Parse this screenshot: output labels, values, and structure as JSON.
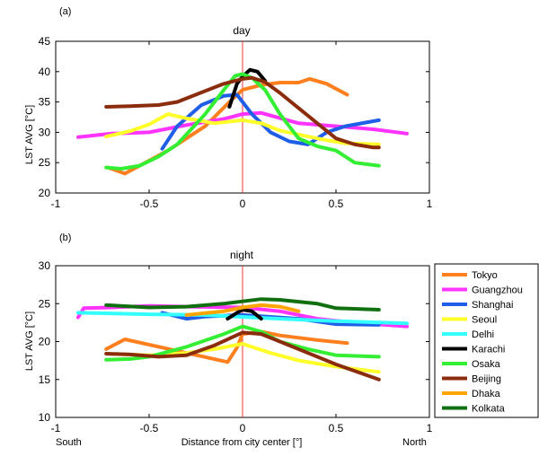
{
  "figure": {
    "dir_south": "South",
    "dir_north": "North",
    "xlabel": "Distance from city center [°]"
  },
  "legend": {
    "placement": "right",
    "items": [
      {
        "name": "Tokyo",
        "color": "#ff7f1e"
      },
      {
        "name": "Guangzhou",
        "color": "#ff33ff"
      },
      {
        "name": "Shanghai",
        "color": "#1f5fe8"
      },
      {
        "name": "Seoul",
        "color": "#ffff2a"
      },
      {
        "name": "Delhi",
        "color": "#33ffff"
      },
      {
        "name": "Karachi",
        "color": "#000000"
      },
      {
        "name": "Osaka",
        "color": "#33ee33"
      },
      {
        "name": "Beijing",
        "color": "#8b2d0d"
      },
      {
        "name": "Dhaka",
        "color": "#ffa500"
      },
      {
        "name": "Kolkata",
        "color": "#107010"
      }
    ]
  },
  "chart_data": [
    {
      "type": "line",
      "panel_label": "(a)",
      "title": "day",
      "ylabel": "LST AVG [°C]",
      "xlabel": "",
      "xlim": [
        -1,
        1
      ],
      "ylim": [
        20,
        45
      ],
      "xticks": [
        "-1",
        "-0.5",
        "0",
        "0.5",
        "1"
      ],
      "yticks": [
        "20",
        "25",
        "30",
        "35",
        "40",
        "45"
      ],
      "vline_x": 0,
      "series": [
        {
          "name": "Tokyo",
          "points": [
            [
              -0.72,
              24.2
            ],
            [
              -0.63,
              23.2
            ],
            [
              -0.4,
              27
            ],
            [
              -0.2,
              31
            ],
            [
              -0.05,
              35.6
            ],
            [
              0,
              37
            ],
            [
              0.1,
              37.8
            ],
            [
              0.2,
              38.2
            ],
            [
              0.3,
              38.2
            ],
            [
              0.36,
              38.8
            ],
            [
              0.45,
              38
            ],
            [
              0.56,
              36.2
            ]
          ]
        },
        {
          "name": "Guangzhou",
          "points": [
            [
              -0.88,
              29.2
            ],
            [
              -0.7,
              29.8
            ],
            [
              -0.5,
              30
            ],
            [
              -0.3,
              31.2
            ],
            [
              -0.1,
              32.2
            ],
            [
              0,
              33
            ],
            [
              0.1,
              33.2
            ],
            [
              0.3,
              31.5
            ],
            [
              0.5,
              31
            ],
            [
              0.7,
              30.5
            ],
            [
              0.88,
              29.8
            ]
          ]
        },
        {
          "name": "Shanghai",
          "points": [
            [
              -0.43,
              27.3
            ],
            [
              -0.35,
              31
            ],
            [
              -0.22,
              34.5
            ],
            [
              -0.1,
              36
            ],
            [
              -0.03,
              36.2
            ],
            [
              0.05,
              33
            ],
            [
              0.15,
              30
            ],
            [
              0.25,
              28.5
            ],
            [
              0.35,
              28
            ],
            [
              0.45,
              30
            ],
            [
              0.55,
              31
            ],
            [
              0.73,
              32
            ]
          ]
        },
        {
          "name": "Seoul",
          "points": [
            [
              -0.73,
              29.3
            ],
            [
              -0.6,
              30.2
            ],
            [
              -0.5,
              31.3
            ],
            [
              -0.4,
              33
            ],
            [
              -0.3,
              32.3
            ],
            [
              -0.15,
              31.5
            ],
            [
              0,
              32
            ],
            [
              0.1,
              31.5
            ],
            [
              0.2,
              30.3
            ],
            [
              0.35,
              29.3
            ],
            [
              0.45,
              28.7
            ],
            [
              0.55,
              28.2
            ],
            [
              0.73,
              28
            ]
          ]
        },
        {
          "name": "Karachi",
          "points": [
            [
              -0.07,
              34.2
            ],
            [
              -0.03,
              38
            ],
            [
              0,
              39.2
            ],
            [
              0.04,
              40.3
            ],
            [
              0.08,
              40
            ],
            [
              0.12,
              38.5
            ]
          ]
        },
        {
          "name": "Osaka",
          "points": [
            [
              -0.73,
              24.2
            ],
            [
              -0.65,
              24
            ],
            [
              -0.55,
              24.5
            ],
            [
              -0.45,
              26
            ],
            [
              -0.35,
              28
            ],
            [
              -0.2,
              33
            ],
            [
              -0.1,
              37
            ],
            [
              -0.04,
              39.3
            ],
            [
              0,
              39.6
            ],
            [
              0.05,
              39
            ],
            [
              0.12,
              37
            ],
            [
              0.2,
              33
            ],
            [
              0.3,
              29
            ],
            [
              0.4,
              27.7
            ],
            [
              0.5,
              27
            ],
            [
              0.6,
              25
            ],
            [
              0.73,
              24.5
            ]
          ]
        },
        {
          "name": "Beijing",
          "points": [
            [
              -0.73,
              34.2
            ],
            [
              -0.6,
              34.3
            ],
            [
              -0.45,
              34.5
            ],
            [
              -0.35,
              35
            ],
            [
              -0.2,
              36.8
            ],
            [
              -0.1,
              38
            ],
            [
              0,
              38.8
            ],
            [
              0.05,
              39
            ],
            [
              0.12,
              38.3
            ],
            [
              0.2,
              36.5
            ],
            [
              0.3,
              34
            ],
            [
              0.4,
              31.5
            ],
            [
              0.5,
              29
            ],
            [
              0.6,
              28
            ],
            [
              0.7,
              27.5
            ],
            [
              0.73,
              27.5
            ]
          ]
        }
      ]
    },
    {
      "type": "line",
      "panel_label": "(b)",
      "title": "night",
      "ylabel": "LST AVG [°C]",
      "xlabel": "Distance from city center [°]",
      "xlim": [
        -1,
        1
      ],
      "ylim": [
        10,
        30
      ],
      "xticks": [
        "-1",
        "-0.5",
        "0",
        "0.5",
        "1"
      ],
      "yticks": [
        "10",
        "15",
        "20",
        "25",
        "30"
      ],
      "vline_x": 0,
      "series": [
        {
          "name": "Tokyo",
          "points": [
            [
              -0.73,
              19
            ],
            [
              -0.63,
              20.3
            ],
            [
              -0.08,
              17.3
            ],
            [
              -0.03,
              19.2
            ],
            [
              0,
              21
            ],
            [
              0.1,
              21.3
            ],
            [
              0.2,
              20.8
            ],
            [
              0.4,
              20.2
            ],
            [
              0.56,
              19.8
            ]
          ]
        },
        {
          "name": "Guangzhou",
          "points": [
            [
              -0.88,
              23.2
            ],
            [
              -0.85,
              24.4
            ],
            [
              -0.7,
              24.5
            ],
            [
              -0.5,
              24.7
            ],
            [
              -0.3,
              24.6
            ],
            [
              0,
              24.5
            ],
            [
              0.2,
              24
            ],
            [
              0.4,
              23
            ],
            [
              0.6,
              22.5
            ],
            [
              0.88,
              22
            ]
          ]
        },
        {
          "name": "Shanghai",
          "points": [
            [
              -0.43,
              23.8
            ],
            [
              -0.3,
              23
            ],
            [
              -0.2,
              23.3
            ],
            [
              0,
              23.5
            ],
            [
              0.3,
              23
            ],
            [
              0.5,
              22.3
            ],
            [
              0.73,
              22.2
            ]
          ]
        },
        {
          "name": "Seoul",
          "points": [
            [
              -0.73,
              18.4
            ],
            [
              -0.5,
              18.2
            ],
            [
              -0.3,
              18.5
            ],
            [
              -0.15,
              19
            ],
            [
              0,
              19.7
            ],
            [
              0.15,
              18.5
            ],
            [
              0.3,
              17.5
            ],
            [
              0.5,
              16.7
            ],
            [
              0.73,
              16
            ]
          ]
        },
        {
          "name": "Delhi",
          "points": [
            [
              -0.88,
              23.8
            ],
            [
              -0.5,
              23.6
            ],
            [
              -0.2,
              23.5
            ],
            [
              0.2,
              23
            ],
            [
              0.5,
              22.7
            ],
            [
              0.88,
              22.4
            ]
          ]
        },
        {
          "name": "Karachi",
          "points": [
            [
              -0.08,
              23
            ],
            [
              -0.03,
              23.8
            ],
            [
              0,
              24.2
            ],
            [
              0.05,
              24
            ],
            [
              0.1,
              23
            ]
          ]
        },
        {
          "name": "Osaka",
          "points": [
            [
              -0.73,
              17.6
            ],
            [
              -0.6,
              17.7
            ],
            [
              -0.5,
              18
            ],
            [
              -0.3,
              19.3
            ],
            [
              -0.1,
              21
            ],
            [
              0,
              22
            ],
            [
              0.1,
              21.3
            ],
            [
              0.2,
              20
            ],
            [
              0.35,
              19
            ],
            [
              0.5,
              18.2
            ],
            [
              0.73,
              18
            ]
          ]
        },
        {
          "name": "Beijing",
          "points": [
            [
              -0.73,
              18.4
            ],
            [
              -0.6,
              18.3
            ],
            [
              -0.45,
              18
            ],
            [
              -0.3,
              18.2
            ],
            [
              -0.15,
              19.5
            ],
            [
              0,
              21.2
            ],
            [
              0.1,
              21
            ],
            [
              0.2,
              20
            ],
            [
              0.35,
              18.5
            ],
            [
              0.5,
              17
            ],
            [
              0.73,
              15
            ]
          ]
        },
        {
          "name": "Dhaka",
          "points": [
            [
              -0.3,
              23.5
            ],
            [
              -0.1,
              24
            ],
            [
              0,
              24.5
            ],
            [
              0.1,
              24.8
            ],
            [
              0.2,
              24.6
            ],
            [
              0.3,
              24
            ]
          ]
        },
        {
          "name": "Kolkata",
          "points": [
            [
              -0.73,
              24.8
            ],
            [
              -0.5,
              24.5
            ],
            [
              -0.3,
              24.6
            ],
            [
              -0.1,
              25
            ],
            [
              0,
              25.3
            ],
            [
              0.1,
              25.6
            ],
            [
              0.2,
              25.5
            ],
            [
              0.4,
              25
            ],
            [
              0.5,
              24.4
            ],
            [
              0.73,
              24.2
            ]
          ]
        }
      ]
    }
  ]
}
